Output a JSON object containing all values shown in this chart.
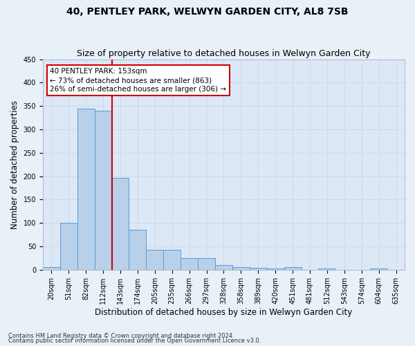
{
  "title": "40, PENTLEY PARK, WELWYN GARDEN CITY, AL8 7SB",
  "subtitle": "Size of property relative to detached houses in Welwyn Garden City",
  "xlabel": "Distribution of detached houses by size in Welwyn Garden City",
  "ylabel": "Number of detached properties",
  "footnote1": "Contains HM Land Registry data © Crown copyright and database right 2024.",
  "footnote2": "Contains public sector information licensed under the Open Government Licence v3.0.",
  "bar_labels": [
    "20sqm",
    "51sqm",
    "82sqm",
    "112sqm",
    "143sqm",
    "174sqm",
    "205sqm",
    "235sqm",
    "266sqm",
    "297sqm",
    "328sqm",
    "358sqm",
    "389sqm",
    "420sqm",
    "451sqm",
    "481sqm",
    "512sqm",
    "543sqm",
    "574sqm",
    "604sqm",
    "635sqm"
  ],
  "bar_values": [
    5,
    100,
    345,
    340,
    197,
    85,
    43,
    43,
    25,
    25,
    10,
    6,
    4,
    3,
    5,
    0,
    3,
    0,
    0,
    3,
    0
  ],
  "bar_color": "#b8d0ea",
  "bar_edge_color": "#5b9bd5",
  "annotation_box_text": "40 PENTLEY PARK: 153sqm\n← 73% of detached houses are smaller (863)\n26% of semi-detached houses are larger (306) →",
  "annotation_box_color": "#ffffff",
  "annotation_box_edge_color": "#cc0000",
  "vline_color": "#cc0000",
  "ylim": [
    0,
    450
  ],
  "yticks": [
    0,
    50,
    100,
    150,
    200,
    250,
    300,
    350,
    400,
    450
  ],
  "grid_color": "#d0d8e8",
  "bg_color": "#dce8f5",
  "fig_bg_color": "#e8f0f8",
  "title_fontsize": 10,
  "subtitle_fontsize": 9,
  "xlabel_fontsize": 8.5,
  "ylabel_fontsize": 8.5,
  "tick_fontsize": 7,
  "annot_fontsize": 7.5,
  "footnote_fontsize": 6
}
